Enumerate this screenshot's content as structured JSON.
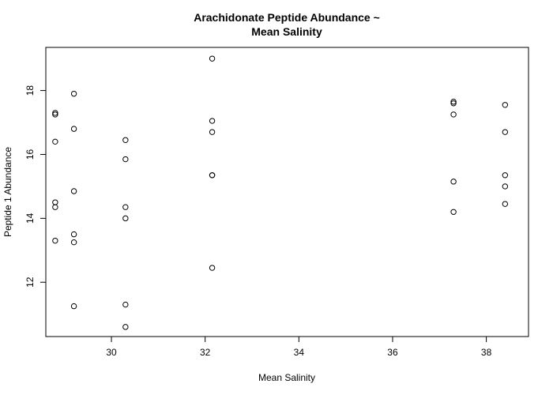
{
  "chart_data": {
    "type": "scatter",
    "title_line1": "Arachidonate Peptide Abundance ~",
    "title_line2": "Mean Salinity",
    "xlabel": "Mean Salinity",
    "ylabel": "Peptide 1 Abundance",
    "xlim": [
      28.6,
      38.9
    ],
    "ylim": [
      10.3,
      19.35
    ],
    "x_ticks": [
      30,
      32,
      34,
      36,
      38
    ],
    "y_ticks": [
      12,
      14,
      16,
      18
    ],
    "grid": false,
    "legend": "none",
    "marker": "open-circle",
    "points": [
      {
        "x": 28.8,
        "y": 17.3
      },
      {
        "x": 28.8,
        "y": 17.25
      },
      {
        "x": 28.8,
        "y": 16.4
      },
      {
        "x": 28.8,
        "y": 14.5
      },
      {
        "x": 28.8,
        "y": 14.35
      },
      {
        "x": 28.8,
        "y": 13.3
      },
      {
        "x": 29.2,
        "y": 17.9
      },
      {
        "x": 29.2,
        "y": 16.8
      },
      {
        "x": 29.2,
        "y": 14.85
      },
      {
        "x": 29.2,
        "y": 13.5
      },
      {
        "x": 29.2,
        "y": 13.25
      },
      {
        "x": 29.2,
        "y": 11.25
      },
      {
        "x": 30.3,
        "y": 16.45
      },
      {
        "x": 30.3,
        "y": 15.85
      },
      {
        "x": 30.3,
        "y": 14.35
      },
      {
        "x": 30.3,
        "y": 14.0
      },
      {
        "x": 30.3,
        "y": 11.3
      },
      {
        "x": 30.3,
        "y": 10.6
      },
      {
        "x": 32.15,
        "y": 19.0
      },
      {
        "x": 32.15,
        "y": 17.05
      },
      {
        "x": 32.15,
        "y": 16.7
      },
      {
        "x": 32.15,
        "y": 15.35
      },
      {
        "x": 32.15,
        "y": 15.35
      },
      {
        "x": 32.15,
        "y": 12.45
      },
      {
        "x": 37.3,
        "y": 17.65
      },
      {
        "x": 37.3,
        "y": 17.6
      },
      {
        "x": 37.3,
        "y": 17.25
      },
      {
        "x": 37.3,
        "y": 15.15
      },
      {
        "x": 37.3,
        "y": 14.2
      },
      {
        "x": 38.4,
        "y": 17.55
      },
      {
        "x": 38.4,
        "y": 16.7
      },
      {
        "x": 38.4,
        "y": 15.35
      },
      {
        "x": 38.4,
        "y": 15.0
      },
      {
        "x": 38.4,
        "y": 14.45
      }
    ]
  }
}
